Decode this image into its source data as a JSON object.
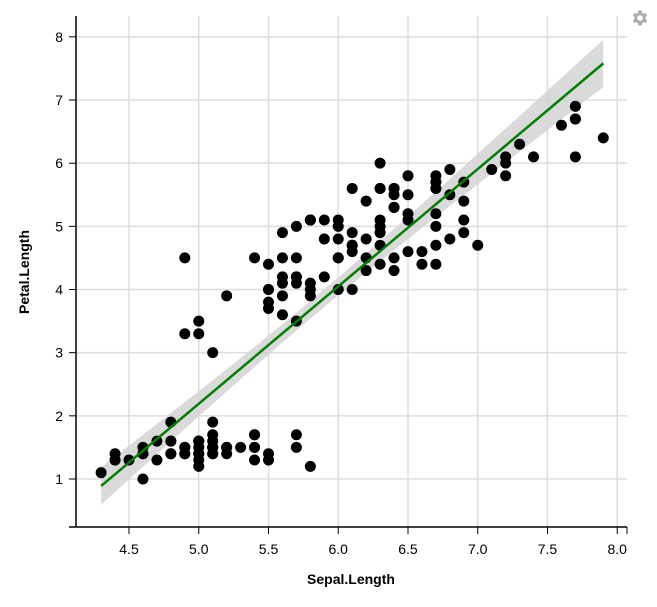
{
  "chart_data": {
    "type": "scatter",
    "xlabel": "Sepal.Length",
    "ylabel": "Petal.Length",
    "xlim": [
      4.12,
      8.07
    ],
    "ylim": [
      0.24,
      8.33
    ],
    "x_ticks": [
      "4.5",
      "5.0",
      "5.5",
      "6.0",
      "6.5",
      "7.0",
      "7.5",
      "8.0"
    ],
    "y_ticks": [
      "1",
      "2",
      "3",
      "4",
      "5",
      "6",
      "7",
      "8"
    ],
    "grid": true,
    "colors": {
      "points": "#000000",
      "fit_line": "#008000",
      "band": "#d3d3d3",
      "grid": "#dddddd"
    },
    "fit": {
      "type": "linear",
      "intercept": -7.101,
      "slope": 1.858,
      "confidence": 0.95
    },
    "points": [
      [
        5.1,
        1.4
      ],
      [
        4.9,
        1.4
      ],
      [
        4.7,
        1.3
      ],
      [
        4.6,
        1.5
      ],
      [
        5.0,
        1.4
      ],
      [
        5.4,
        1.7
      ],
      [
        4.6,
        1.4
      ],
      [
        5.0,
        1.5
      ],
      [
        4.4,
        1.4
      ],
      [
        4.9,
        1.5
      ],
      [
        5.4,
        1.5
      ],
      [
        4.8,
        1.6
      ],
      [
        4.8,
        1.4
      ],
      [
        4.3,
        1.1
      ],
      [
        5.8,
        1.2
      ],
      [
        5.7,
        1.5
      ],
      [
        5.4,
        1.3
      ],
      [
        5.1,
        1.4
      ],
      [
        5.7,
        1.7
      ],
      [
        5.1,
        1.5
      ],
      [
        5.4,
        1.7
      ],
      [
        5.1,
        1.5
      ],
      [
        4.6,
        1.0
      ],
      [
        5.1,
        1.7
      ],
      [
        4.8,
        1.9
      ],
      [
        5.0,
        1.6
      ],
      [
        5.0,
        1.6
      ],
      [
        5.2,
        1.5
      ],
      [
        5.2,
        1.4
      ],
      [
        4.7,
        1.6
      ],
      [
        4.8,
        1.6
      ],
      [
        5.4,
        1.5
      ],
      [
        5.2,
        1.5
      ],
      [
        5.5,
        1.4
      ],
      [
        4.9,
        1.5
      ],
      [
        5.0,
        1.2
      ],
      [
        5.5,
        1.3
      ],
      [
        4.9,
        1.4
      ],
      [
        4.4,
        1.3
      ],
      [
        5.1,
        1.5
      ],
      [
        5.0,
        1.3
      ],
      [
        4.5,
        1.3
      ],
      [
        4.4,
        1.3
      ],
      [
        5.0,
        1.6
      ],
      [
        5.1,
        1.9
      ],
      [
        4.8,
        1.4
      ],
      [
        5.1,
        1.6
      ],
      [
        4.6,
        1.4
      ],
      [
        5.3,
        1.5
      ],
      [
        5.0,
        1.4
      ],
      [
        7.0,
        4.7
      ],
      [
        6.4,
        4.5
      ],
      [
        6.9,
        4.9
      ],
      [
        5.5,
        4.0
      ],
      [
        6.5,
        4.6
      ],
      [
        5.7,
        4.5
      ],
      [
        6.3,
        4.7
      ],
      [
        4.9,
        3.3
      ],
      [
        6.6,
        4.6
      ],
      [
        5.2,
        3.9
      ],
      [
        5.0,
        3.5
      ],
      [
        5.9,
        4.2
      ],
      [
        6.0,
        4.0
      ],
      [
        6.1,
        4.7
      ],
      [
        5.6,
        3.6
      ],
      [
        6.7,
        4.4
      ],
      [
        5.6,
        4.5
      ],
      [
        5.8,
        4.1
      ],
      [
        6.2,
        4.5
      ],
      [
        5.6,
        3.9
      ],
      [
        5.9,
        4.8
      ],
      [
        6.1,
        4.0
      ],
      [
        6.3,
        4.9
      ],
      [
        6.1,
        4.7
      ],
      [
        6.4,
        4.3
      ],
      [
        6.6,
        4.4
      ],
      [
        6.8,
        4.8
      ],
      [
        6.7,
        5.0
      ],
      [
        6.0,
        4.5
      ],
      [
        5.7,
        3.5
      ],
      [
        5.5,
        3.8
      ],
      [
        5.5,
        3.7
      ],
      [
        5.8,
        3.9
      ],
      [
        6.0,
        5.1
      ],
      [
        5.4,
        4.5
      ],
      [
        6.0,
        4.5
      ],
      [
        6.7,
        4.7
      ],
      [
        6.3,
        4.4
      ],
      [
        5.6,
        4.1
      ],
      [
        5.5,
        4.0
      ],
      [
        5.5,
        4.4
      ],
      [
        6.1,
        4.6
      ],
      [
        5.8,
        4.0
      ],
      [
        5.0,
        3.3
      ],
      [
        5.6,
        4.2
      ],
      [
        5.7,
        4.2
      ],
      [
        5.7,
        4.2
      ],
      [
        6.2,
        4.3
      ],
      [
        5.1,
        3.0
      ],
      [
        5.7,
        4.1
      ],
      [
        6.3,
        6.0
      ],
      [
        5.8,
        5.1
      ],
      [
        7.1,
        5.9
      ],
      [
        6.3,
        5.6
      ],
      [
        6.5,
        5.8
      ],
      [
        7.6,
        6.6
      ],
      [
        4.9,
        4.5
      ],
      [
        7.3,
        6.3
      ],
      [
        6.7,
        5.8
      ],
      [
        7.2,
        6.1
      ],
      [
        6.5,
        5.1
      ],
      [
        6.4,
        5.3
      ],
      [
        6.8,
        5.5
      ],
      [
        5.7,
        5.0
      ],
      [
        5.8,
        5.1
      ],
      [
        6.4,
        5.3
      ],
      [
        6.5,
        5.5
      ],
      [
        7.7,
        6.7
      ],
      [
        7.7,
        6.9
      ],
      [
        6.0,
        5.0
      ],
      [
        6.9,
        5.7
      ],
      [
        5.6,
        4.9
      ],
      [
        7.7,
        6.7
      ],
      [
        6.3,
        4.9
      ],
      [
        6.7,
        5.7
      ],
      [
        7.2,
        6.0
      ],
      [
        6.2,
        4.8
      ],
      [
        6.1,
        4.9
      ],
      [
        6.4,
        5.6
      ],
      [
        7.2,
        5.8
      ],
      [
        7.4,
        6.1
      ],
      [
        7.9,
        6.4
      ],
      [
        6.4,
        5.6
      ],
      [
        6.3,
        5.1
      ],
      [
        6.1,
        5.6
      ],
      [
        7.7,
        6.1
      ],
      [
        6.3,
        5.6
      ],
      [
        6.4,
        5.5
      ],
      [
        6.0,
        4.8
      ],
      [
        6.9,
        5.4
      ],
      [
        6.7,
        5.6
      ],
      [
        6.9,
        5.1
      ],
      [
        5.8,
        5.1
      ],
      [
        6.8,
        5.9
      ],
      [
        6.7,
        5.7
      ],
      [
        6.7,
        5.2
      ],
      [
        6.3,
        5.0
      ],
      [
        6.5,
        5.2
      ],
      [
        6.2,
        5.4
      ],
      [
        5.9,
        5.1
      ]
    ]
  }
}
